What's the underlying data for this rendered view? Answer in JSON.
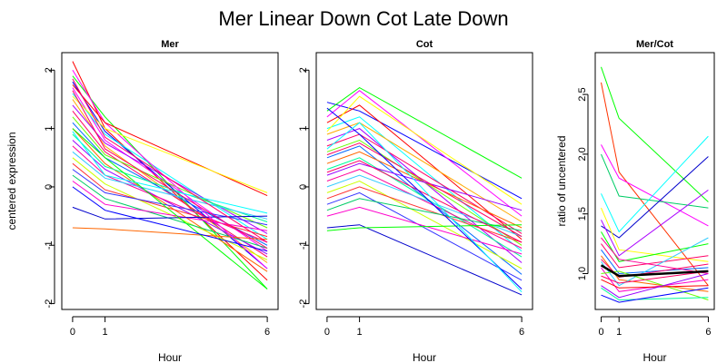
{
  "figure": {
    "title": "Mer Linear Down Cot Late Down"
  },
  "chart_data": [
    {
      "id": "mer",
      "type": "line",
      "title": "Mer",
      "xlabel": "Hour",
      "ylabel": "centered expression",
      "x": [
        0,
        1,
        6
      ],
      "xtick_labels": [
        "0",
        "1",
        "6"
      ],
      "ylim": [
        -2.1,
        2.3
      ],
      "yticks": [
        -2,
        -1,
        0,
        1,
        2
      ],
      "ytick_labels": [
        "-2",
        "-1",
        "0",
        "1",
        "2"
      ],
      "series": [
        {
          "color": "#ff0000",
          "values": [
            2.15,
            1.0,
            -1.6
          ]
        },
        {
          "color": "#00ff00",
          "values": [
            1.9,
            1.2,
            -1.75
          ]
        },
        {
          "color": "#0000ff",
          "values": [
            1.8,
            0.95,
            -1.4
          ]
        },
        {
          "color": "#ff00ff",
          "values": [
            1.7,
            0.8,
            -1.1
          ]
        },
        {
          "color": "#00ffff",
          "values": [
            1.6,
            0.9,
            -0.9
          ]
        },
        {
          "color": "#ffaa00",
          "values": [
            1.5,
            0.7,
            -1.3
          ]
        },
        {
          "color": "#aa00ff",
          "values": [
            1.4,
            0.75,
            -0.8
          ]
        },
        {
          "color": "#ff0066",
          "values": [
            1.3,
            0.6,
            -1.2
          ]
        },
        {
          "color": "#66ff00",
          "values": [
            1.2,
            0.55,
            -0.7
          ]
        },
        {
          "color": "#0066ff",
          "values": [
            1.1,
            0.5,
            -1.0
          ]
        },
        {
          "color": "#ff6600",
          "values": [
            1.0,
            0.4,
            -1.45
          ]
        },
        {
          "color": "#00ff99",
          "values": [
            0.9,
            0.35,
            -0.6
          ]
        },
        {
          "color": "#9900ff",
          "values": [
            0.8,
            0.3,
            -1.15
          ]
        },
        {
          "color": "#ff0099",
          "values": [
            0.7,
            0.2,
            -0.95
          ]
        },
        {
          "color": "#33ccff",
          "values": [
            0.6,
            0.15,
            -0.55
          ]
        },
        {
          "color": "#ccff00",
          "values": [
            0.5,
            0.05,
            -1.25
          ]
        },
        {
          "color": "#ff3333",
          "values": [
            0.4,
            -0.05,
            -0.85
          ]
        },
        {
          "color": "#3333ff",
          "values": [
            0.3,
            -0.1,
            -0.65
          ]
        },
        {
          "color": "#00cc66",
          "values": [
            0.2,
            -0.2,
            -1.05
          ]
        },
        {
          "color": "#ff00cc",
          "values": [
            0.1,
            -0.3,
            -0.75
          ]
        },
        {
          "color": "#0000cc",
          "values": [
            -0.35,
            -0.55,
            -0.5
          ]
        },
        {
          "color": "#ff6600",
          "values": [
            -0.7,
            -0.72,
            -0.9
          ]
        },
        {
          "color": "#00ff00",
          "values": [
            1.0,
            0.5,
            -1.75
          ]
        },
        {
          "color": "#ff00ff",
          "values": [
            2.0,
            1.1,
            -1.4
          ]
        },
        {
          "color": "#ff0000",
          "values": [
            1.75,
            1.1,
            -0.15
          ]
        },
        {
          "color": "#ffff00",
          "values": [
            1.55,
            1.0,
            -0.1
          ]
        },
        {
          "color": "#0000ff",
          "values": [
            0.0,
            -0.4,
            -1.1
          ]
        },
        {
          "color": "#00ffff",
          "values": [
            0.95,
            0.2,
            -0.45
          ]
        },
        {
          "color": "#ff0066",
          "values": [
            1.85,
            0.85,
            -0.95
          ]
        },
        {
          "color": "#ff0066",
          "values": [
            1.65,
            0.65,
            -1.05
          ]
        }
      ]
    },
    {
      "id": "cot",
      "type": "line",
      "title": "Cot",
      "xlabel": "Hour",
      "ylabel": "",
      "x": [
        0,
        1,
        6
      ],
      "xtick_labels": [
        "0",
        "1",
        "6"
      ],
      "ylim": [
        -2.1,
        2.3
      ],
      "yticks": [
        -2,
        -1,
        0,
        1,
        2
      ],
      "ytick_labels": [
        "-2",
        "-1",
        "0",
        "1",
        "2"
      ],
      "series": [
        {
          "color": "#0000ff",
          "values": [
            1.45,
            1.3,
            -0.2
          ]
        },
        {
          "color": "#00ff00",
          "values": [
            1.3,
            1.7,
            0.15
          ]
        },
        {
          "color": "#ff00ff",
          "values": [
            1.2,
            1.65,
            -0.5
          ]
        },
        {
          "color": "#ff0000",
          "values": [
            1.1,
            1.4,
            -0.9
          ]
        },
        {
          "color": "#00ffff",
          "values": [
            1.0,
            1.2,
            -1.1
          ]
        },
        {
          "color": "#ffaa00",
          "values": [
            0.9,
            1.1,
            -0.6
          ]
        },
        {
          "color": "#aa00ff",
          "values": [
            0.8,
            1.0,
            -1.3
          ]
        },
        {
          "color": "#ff0066",
          "values": [
            0.7,
            0.9,
            -0.8
          ]
        },
        {
          "color": "#66ff00",
          "values": [
            0.6,
            0.8,
            -1.0
          ]
        },
        {
          "color": "#0066ff",
          "values": [
            0.5,
            0.7,
            -1.5
          ]
        },
        {
          "color": "#ff6600",
          "values": [
            0.4,
            0.6,
            -0.7
          ]
        },
        {
          "color": "#00ff99",
          "values": [
            0.3,
            0.5,
            -1.2
          ]
        },
        {
          "color": "#9900ff",
          "values": [
            0.2,
            0.4,
            -0.4
          ]
        },
        {
          "color": "#ff0099",
          "values": [
            0.1,
            0.3,
            -1.05
          ]
        },
        {
          "color": "#33ccff",
          "values": [
            0.0,
            0.2,
            -0.85
          ]
        },
        {
          "color": "#ccff00",
          "values": [
            -0.1,
            0.1,
            -1.4
          ]
        },
        {
          "color": "#ff3333",
          "values": [
            -0.2,
            0.0,
            -0.95
          ]
        },
        {
          "color": "#3333ff",
          "values": [
            -0.3,
            -0.1,
            -1.6
          ]
        },
        {
          "color": "#00cc66",
          "values": [
            -0.4,
            -0.2,
            -0.75
          ]
        },
        {
          "color": "#ff00cc",
          "values": [
            -0.5,
            -0.35,
            -1.15
          ]
        },
        {
          "color": "#0000cc",
          "values": [
            -0.7,
            -0.65,
            -1.85
          ]
        },
        {
          "color": "#00ff00",
          "values": [
            -0.75,
            -0.7,
            -0.65
          ]
        },
        {
          "color": "#ffff00",
          "values": [
            0.95,
            1.55,
            -0.3
          ]
        },
        {
          "color": "#ff0066",
          "values": [
            0.55,
            0.75,
            -0.85
          ]
        },
        {
          "color": "#ff0066",
          "values": [
            0.25,
            0.45,
            -0.95
          ]
        },
        {
          "color": "#0000ff",
          "values": [
            1.35,
            0.9,
            -1.75
          ]
        },
        {
          "color": "#00ffff",
          "values": [
            0.65,
            1.1,
            -1.8
          ]
        }
      ]
    },
    {
      "id": "ratio",
      "type": "line",
      "title": "Mer/Cot",
      "xlabel": "Hour",
      "ylabel": "ratio of uncentered",
      "x": [
        0,
        1,
        6
      ],
      "xtick_labels": [
        "0",
        "1",
        "6"
      ],
      "ylim": [
        0.7,
        2.85
      ],
      "yticks": [
        1.0,
        1.5,
        2.0,
        2.5
      ],
      "ytick_labels": [
        "1.0",
        "1.5",
        "2.0",
        "2.5"
      ],
      "series": [
        {
          "color": "#00ff00",
          "values": [
            2.73,
            2.3,
            1.6
          ]
        },
        {
          "color": "#ff3300",
          "values": [
            2.6,
            1.85,
            0.9
          ]
        },
        {
          "color": "#ff00ff",
          "values": [
            2.08,
            1.8,
            1.4
          ]
        },
        {
          "color": "#00cc66",
          "values": [
            2.0,
            1.65,
            1.55
          ]
        },
        {
          "color": "#00ffff",
          "values": [
            1.67,
            1.35,
            2.15
          ]
        },
        {
          "color": "#0000cc",
          "values": [
            1.4,
            1.3,
            1.98
          ]
        },
        {
          "color": "#ffff00",
          "values": [
            1.55,
            1.2,
            1.1
          ]
        },
        {
          "color": "#aa00ff",
          "values": [
            1.45,
            1.15,
            1.7
          ]
        },
        {
          "color": "#00ff00",
          "values": [
            1.35,
            1.1,
            1.25
          ]
        },
        {
          "color": "#ff0066",
          "values": [
            1.25,
            1.05,
            1.15
          ]
        },
        {
          "color": "#0066ff",
          "values": [
            1.2,
            1.0,
            1.05
          ]
        },
        {
          "color": "#ff6600",
          "values": [
            1.15,
            0.95,
            0.85
          ]
        },
        {
          "color": "#33ccff",
          "values": [
            1.1,
            0.9,
            1.3
          ]
        },
        {
          "color": "#ff00cc",
          "values": [
            1.05,
            0.85,
            0.95
          ]
        },
        {
          "color": "#66ff00",
          "values": [
            1.0,
            1.02,
            0.78
          ]
        },
        {
          "color": "#ff0000",
          "values": [
            0.95,
            0.88,
            0.9
          ]
        },
        {
          "color": "#9900ff",
          "values": [
            0.9,
            0.8,
            1.0
          ]
        },
        {
          "color": "#00ff99",
          "values": [
            0.88,
            0.78,
            0.8
          ]
        },
        {
          "color": "#0000ff",
          "values": [
            0.82,
            0.76,
            0.88
          ]
        },
        {
          "color": "#ff0099",
          "values": [
            1.3,
            1.12,
            1.0
          ]
        },
        {
          "color": "#ff0066",
          "values": [
            1.12,
            0.97,
            1.08
          ]
        },
        {
          "color": "#ff0066",
          "values": [
            0.98,
            0.92,
            1.02
          ]
        },
        {
          "color": "#000000",
          "width": 2.5,
          "values": [
            1.07,
            0.98,
            1.02
          ]
        }
      ]
    }
  ]
}
